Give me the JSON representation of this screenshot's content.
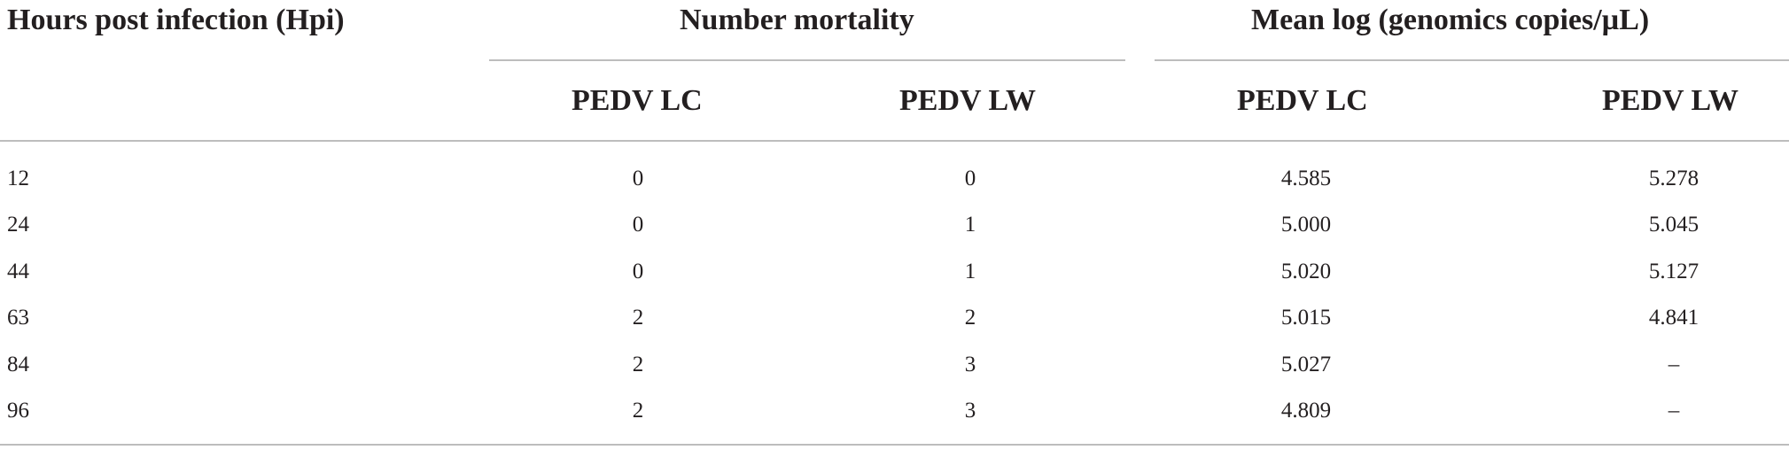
{
  "table": {
    "header": {
      "hours": "Hours post infection (Hpi)",
      "mortality": "Number mortality",
      "mean_log": "Mean log (genomics copies/µL)"
    },
    "subheaders": [
      "PEDV LC",
      "PEDV LW",
      "PEDV LC",
      "PEDV LW"
    ],
    "rows": [
      [
        "12",
        "0",
        "0",
        "4.585",
        "5.278"
      ],
      [
        "24",
        "0",
        "1",
        "5.000",
        "5.045"
      ],
      [
        "44",
        "0",
        "1",
        "5.020",
        "5.127"
      ],
      [
        "63",
        "2",
        "2",
        "5.015",
        "4.841"
      ],
      [
        "84",
        "2",
        "3",
        "5.027",
        "–"
      ],
      [
        "96",
        "2",
        "3",
        "4.809",
        "–"
      ]
    ]
  }
}
